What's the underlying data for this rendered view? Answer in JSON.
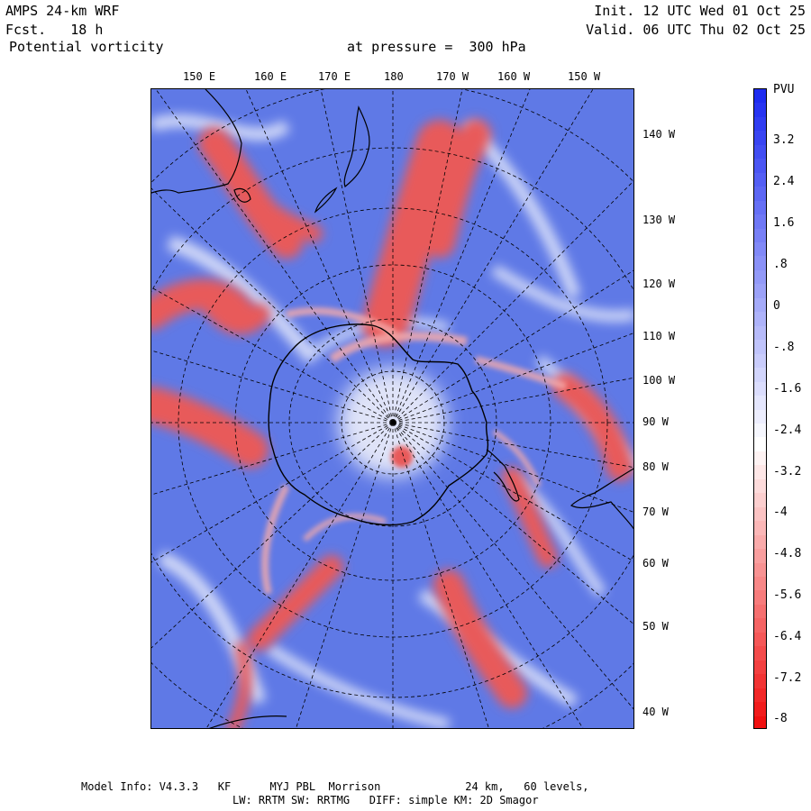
{
  "header": {
    "model": "AMPS 24-km WRF",
    "forecast": "Fcst.   18 h",
    "field": "Potential vorticity",
    "level": "at pressure =  300 hPa",
    "init": "Init. 12 UTC Wed 01 Oct 25",
    "valid": "Valid. 06 UTC Thu 02 Oct 25"
  },
  "top_labels": [
    "150 E",
    "160 E",
    "170 E",
    "180",
    "170 W",
    "160 W",
    "150 W"
  ],
  "right_labels": [
    "140 W",
    "130 W",
    "120 W",
    "110 W",
    "100 W",
    "90 W",
    "80 W",
    "70 W",
    "60 W",
    "50 W",
    "40 W"
  ],
  "colorbar": {
    "unit": "PVU",
    "labels": [
      "3.2",
      "2.4",
      "1.6",
      ".8",
      "0",
      "-.8",
      "-1.6",
      "-2.4",
      "-3.2",
      "-4",
      "-4.8",
      "-5.6",
      "-6.4",
      "-7.2",
      "-8"
    ],
    "high_color": "#1e2cf0",
    "low_color": "#f01010"
  },
  "footer": {
    "line1": "Model Info: V4.3.3   KF      MYJ PBL  Morrison             24 km,   60 levels,",
    "line2": "LW: RRTM SW: RRTMG   DIFF: simple KM: 2D Smagor"
  },
  "colors": {
    "blue_bg": "#5e78e6",
    "red_band": "#e85a5a",
    "white_band": "#f2f2fb"
  }
}
